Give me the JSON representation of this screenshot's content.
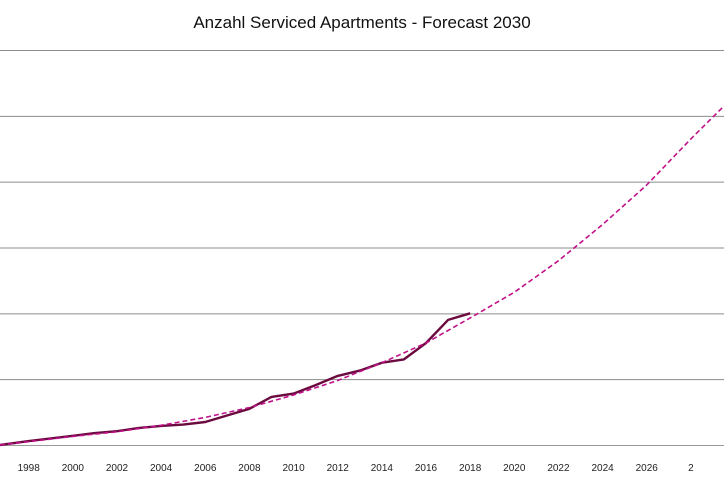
{
  "chart_data": {
    "type": "line",
    "title": "Anzahl Serviced Apartments - Forecast 2030",
    "xlabel": "",
    "ylabel": "",
    "x_ticks": [
      "1998",
      "2000",
      "2002",
      "2004",
      "2006",
      "2008",
      "2010",
      "2012",
      "2014",
      "2016",
      "2018",
      "2020",
      "2022",
      "2024",
      "2026",
      "2"
    ],
    "xlim": [
      1996.7,
      2029.5
    ],
    "ylim": [
      0,
      60
    ],
    "y_gridlines": [
      10,
      20,
      30,
      40,
      50,
      60
    ],
    "y_tick_labels_visible": false,
    "grid": true,
    "legend": "none",
    "series": [
      {
        "style": "solid",
        "color": "#6b0a3e",
        "x": [
          1996.7,
          1998,
          1999,
          2000,
          2001,
          2002,
          2003,
          2004,
          2005,
          2006,
          2007,
          2008,
          2009,
          2010,
          2011,
          2012,
          2013,
          2014,
          2015,
          2016,
          2017,
          2018
        ],
        "y": [
          0.0,
          0.6,
          1.0,
          1.4,
          1.8,
          2.1,
          2.6,
          2.9,
          3.1,
          3.5,
          4.5,
          5.5,
          7.3,
          7.8,
          9.1,
          10.5,
          11.3,
          12.5,
          13.0,
          15.5,
          19.0,
          20.0
        ]
      },
      {
        "style": "dashed",
        "color": "#c0118a",
        "x": [
          1996.7,
          1998,
          2000,
          2002,
          2004,
          2006,
          2008,
          2010,
          2012,
          2014,
          2016,
          2018,
          2020,
          2022,
          2024,
          2026,
          2028,
          2029.5
        ],
        "y": [
          0.0,
          0.5,
          1.3,
          2.0,
          3.0,
          4.2,
          5.7,
          7.6,
          9.8,
          12.5,
          15.5,
          19.3,
          23.2,
          28.0,
          33.5,
          39.5,
          46.5,
          51.5
        ]
      }
    ]
  }
}
